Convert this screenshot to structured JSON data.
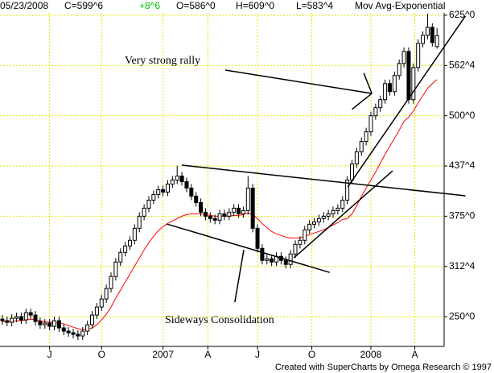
{
  "chart_data": {
    "type": "candlestick",
    "header": [
      {
        "text": "05/23/2008",
        "color": "#000000"
      },
      {
        "text": "C=599^6",
        "color": "#000000"
      },
      {
        "text": "+8^6",
        "color": "#00c000"
      },
      {
        "text": "O=586^0",
        "color": "#000000"
      },
      {
        "text": "H=609^0",
        "color": "#000000"
      },
      {
        "text": "L=583^4",
        "color": "#000000"
      },
      {
        "text": "Mov Avg-Exponential",
        "color": "#000000"
      }
    ],
    "annotations": [
      "Very strong rally",
      "Sideways Consolidation"
    ],
    "footer": "Created with SuperCharts by Omega Research © 1997",
    "open": [
      247,
      245,
      243,
      248,
      250,
      246,
      255,
      252,
      244,
      240,
      242,
      238,
      245,
      236,
      232,
      230,
      228,
      226,
      232,
      240,
      252,
      262,
      272,
      285,
      300,
      318,
      330,
      338,
      345,
      360,
      375,
      385,
      395,
      402,
      408,
      405,
      415,
      420,
      425,
      418,
      410,
      400,
      392,
      380,
      375,
      372,
      370,
      378,
      375,
      380,
      385,
      378,
      382,
      410,
      360,
      335,
      320,
      322,
      318,
      325,
      320,
      315,
      328,
      340,
      345,
      358,
      365,
      368,
      372,
      375,
      378,
      382,
      385,
      395,
      420,
      440,
      455,
      468,
      480,
      500,
      510,
      520,
      540,
      530,
      550,
      565,
      580,
      520,
      560,
      590,
      600,
      610,
      586
    ],
    "high": [
      252,
      250,
      253,
      255,
      255,
      260,
      260,
      257,
      249,
      247,
      247,
      250,
      250,
      241,
      237,
      235,
      233,
      237,
      245,
      257,
      267,
      277,
      290,
      305,
      323,
      335,
      343,
      350,
      365,
      380,
      390,
      400,
      407,
      413,
      413,
      420,
      425,
      438,
      430,
      423,
      415,
      405,
      397,
      385,
      380,
      377,
      383,
      383,
      385,
      390,
      390,
      387,
      425,
      415,
      365,
      340,
      327,
      327,
      330,
      330,
      325,
      333,
      345,
      350,
      363,
      370,
      373,
      377,
      380,
      383,
      387,
      390,
      400,
      425,
      445,
      460,
      473,
      485,
      505,
      515,
      525,
      545,
      545,
      555,
      570,
      585,
      585,
      565,
      595,
      605,
      627,
      615,
      609
    ],
    "low": [
      240,
      238,
      238,
      243,
      241,
      241,
      247,
      239,
      235,
      235,
      233,
      233,
      231,
      227,
      225,
      223,
      221,
      221,
      227,
      235,
      247,
      257,
      267,
      280,
      295,
      313,
      325,
      333,
      340,
      355,
      370,
      380,
      390,
      397,
      400,
      400,
      410,
      415,
      413,
      405,
      395,
      387,
      375,
      370,
      367,
      365,
      365,
      370,
      370,
      375,
      373,
      373,
      377,
      355,
      330,
      315,
      315,
      313,
      313,
      315,
      310,
      310,
      323,
      335,
      340,
      353,
      360,
      363,
      367,
      370,
      373,
      377,
      380,
      390,
      415,
      435,
      450,
      463,
      475,
      495,
      505,
      515,
      525,
      525,
      545,
      560,
      515,
      515,
      555,
      585,
      595,
      586,
      583.5
    ],
    "close": [
      245,
      243,
      248,
      250,
      246,
      255,
      252,
      244,
      240,
      242,
      238,
      245,
      236,
      232,
      230,
      228,
      226,
      232,
      240,
      252,
      262,
      272,
      285,
      300,
      318,
      330,
      338,
      345,
      360,
      375,
      385,
      395,
      402,
      408,
      405,
      415,
      420,
      425,
      418,
      410,
      400,
      392,
      380,
      375,
      372,
      370,
      378,
      375,
      380,
      385,
      378,
      382,
      410,
      360,
      335,
      320,
      322,
      318,
      325,
      320,
      315,
      328,
      340,
      345,
      358,
      365,
      368,
      372,
      375,
      378,
      382,
      385,
      395,
      420,
      440,
      455,
      468,
      480,
      500,
      510,
      520,
      540,
      530,
      550,
      565,
      580,
      520,
      560,
      590,
      600,
      610,
      591,
      599.75
    ],
    "color": "#000000",
    "ma": {
      "color": "#ff0000",
      "values": [
        244,
        244,
        244,
        245,
        245,
        246,
        247,
        246,
        245,
        244,
        243,
        243,
        242,
        241,
        239,
        237,
        235,
        234,
        234,
        236,
        240,
        246,
        253,
        262,
        273,
        283,
        293,
        303,
        313,
        323,
        333,
        342,
        350,
        357,
        362,
        366,
        369,
        372,
        375,
        377,
        378,
        378,
        378,
        377,
        376,
        375,
        375,
        375,
        375,
        376,
        376,
        377,
        379,
        377,
        372,
        366,
        361,
        356,
        353,
        351,
        349,
        348,
        348,
        348,
        350,
        352,
        354,
        356,
        358,
        361,
        364,
        367,
        371,
        372,
        378,
        388,
        400,
        410,
        420,
        430,
        441,
        452,
        462,
        472,
        482,
        493,
        498,
        506,
        516,
        525,
        534,
        540,
        545
      ]
    },
    "lines": [
      {
        "x": [
          38,
          98
        ],
        "y": [
          438.5,
          400.4
        ]
      },
      {
        "x": [
          34.8,
          69.3
        ],
        "y": [
          365.3,
          305
        ]
      },
      {
        "x": [
          61.7,
          82.6
        ],
        "y": [
          323.2,
          431.5
        ]
      },
      {
        "x": [
          73.1,
          98
        ],
        "y": [
          411.4,
          624
        ]
      },
      {
        "x": [
          47.2,
          78.2
        ],
        "y": [
          556.8,
          527.7
        ]
      },
      {
        "x": [
          76.5,
          78.2
        ],
        "y": [
          553,
          527.7
        ]
      },
      {
        "x": [
          74,
          78.2
        ],
        "y": [
          508,
          527.7
        ]
      },
      {
        "x": [
          49.2,
          51.1
        ],
        "y": [
          268,
          333.2
        ]
      }
    ],
    "xlim": [
      -0.5,
      93.5
    ],
    "xticks": [
      {
        "value": 10,
        "label": "J"
      },
      {
        "value": 21,
        "label": "O"
      },
      {
        "value": 34,
        "label": "2007"
      },
      {
        "value": 43.5,
        "label": "A"
      },
      {
        "value": 54,
        "label": "J"
      },
      {
        "value": 65.5,
        "label": "O"
      },
      {
        "value": 78,
        "label": "2008"
      },
      {
        "value": 87.3,
        "label": "A"
      }
    ],
    "ylim": [
      213,
      644
    ],
    "yticks": [
      {
        "value": 250,
        "label": "250^0"
      },
      {
        "value": 312.5,
        "label": "312^4"
      },
      {
        "value": 375,
        "label": "375^0"
      },
      {
        "value": 437.5,
        "label": "437^4"
      },
      {
        "value": 500,
        "label": "500^0"
      },
      {
        "value": 562.5,
        "label": "562^4"
      },
      {
        "value": 625,
        "label": "625^0"
      }
    ],
    "grid": true,
    "grid_color": "#e6e600"
  }
}
